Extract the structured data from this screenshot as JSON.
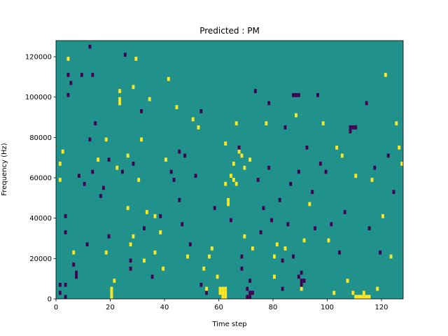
{
  "chart_data": {
    "type": "heatmap",
    "title": "Predicted : PM",
    "xlabel": "Time step",
    "ylabel": "Frequency (Hz)",
    "xlim": [
      0,
      128
    ],
    "ylim": [
      0,
      128000
    ],
    "xticks": [
      0,
      20,
      40,
      60,
      80,
      100,
      120
    ],
    "yticks": [
      0,
      20000,
      40000,
      60000,
      80000,
      100000,
      120000
    ],
    "grid": false,
    "colormap": "viridis",
    "levels": [
      {
        "value": 0,
        "color": "#440154"
      },
      {
        "value": 1,
        "color": "#21918c"
      },
      {
        "value": 2,
        "color": "#fde725"
      }
    ],
    "background_value": 1,
    "cell_width_steps": 1,
    "cell_height_hz": 2000,
    "cells": [
      [
        1,
        2000,
        0
      ],
      [
        1,
        6000,
        0
      ],
      [
        3,
        6000,
        0
      ],
      [
        1,
        58000,
        2
      ],
      [
        1,
        66000,
        2
      ],
      [
        2,
        72000,
        2
      ],
      [
        3,
        32000,
        0
      ],
      [
        3,
        40000,
        0
      ],
      [
        4,
        100000,
        0
      ],
      [
        5,
        106000,
        0
      ],
      [
        4,
        118000,
        2
      ],
      [
        6,
        16000,
        0
      ],
      [
        7,
        10000,
        0
      ],
      [
        7,
        12000,
        0
      ],
      [
        6,
        22000,
        2
      ],
      [
        8,
        60000,
        0
      ],
      [
        9,
        110000,
        0
      ],
      [
        10,
        56000,
        0
      ],
      [
        11,
        26000,
        0
      ],
      [
        12,
        78000,
        0
      ],
      [
        12,
        124000,
        0
      ],
      [
        13,
        62000,
        0
      ],
      [
        13,
        110000,
        0
      ],
      [
        14,
        86000,
        0
      ],
      [
        15,
        68000,
        2
      ],
      [
        16,
        50000,
        0
      ],
      [
        17,
        54000,
        0
      ],
      [
        18,
        78000,
        2
      ],
      [
        19,
        30000,
        0
      ],
      [
        19,
        68000,
        0
      ],
      [
        20,
        0,
        2
      ],
      [
        20,
        2000,
        2
      ],
      [
        20,
        4000,
        2
      ],
      [
        21,
        8000,
        2
      ],
      [
        22,
        64000,
        2
      ],
      [
        23,
        102000,
        2
      ],
      [
        24,
        62000,
        0
      ],
      [
        25,
        120000,
        0
      ],
      [
        26,
        44000,
        2
      ],
      [
        26,
        70000,
        2
      ],
      [
        27,
        18000,
        0
      ],
      [
        27,
        26000,
        2
      ],
      [
        28,
        66000,
        0
      ],
      [
        28,
        104000,
        2
      ],
      [
        29,
        118000,
        2
      ],
      [
        30,
        58000,
        2
      ],
      [
        31,
        78000,
        2
      ],
      [
        31,
        92000,
        0
      ],
      [
        32,
        34000,
        0
      ],
      [
        32,
        18000,
        2
      ],
      [
        33,
        42000,
        2
      ],
      [
        34,
        98000,
        2
      ],
      [
        35,
        10000,
        0
      ],
      [
        36,
        22000,
        2
      ],
      [
        36,
        40000,
        2
      ],
      [
        38,
        40000,
        0
      ],
      [
        38,
        32000,
        2
      ],
      [
        39,
        14000,
        2
      ],
      [
        40,
        68000,
        2
      ],
      [
        41,
        108000,
        2
      ],
      [
        42,
        62000,
        0
      ],
      [
        43,
        58000,
        0
      ],
      [
        44,
        94000,
        2
      ],
      [
        45,
        48000,
        0
      ],
      [
        45,
        72000,
        0
      ],
      [
        46,
        36000,
        0
      ],
      [
        47,
        70000,
        0
      ],
      [
        48,
        20000,
        2
      ],
      [
        49,
        26000,
        0
      ],
      [
        50,
        88000,
        2
      ],
      [
        51,
        60000,
        0
      ],
      [
        52,
        84000,
        2
      ],
      [
        53,
        92000,
        0
      ],
      [
        54,
        14000,
        2
      ],
      [
        55,
        2000,
        0
      ],
      [
        55,
        4000,
        2
      ],
      [
        56,
        20000,
        2
      ],
      [
        57,
        24000,
        2
      ],
      [
        58,
        44000,
        0
      ],
      [
        59,
        10000,
        2
      ],
      [
        60,
        2000,
        2
      ],
      [
        60,
        4000,
        2
      ],
      [
        61,
        4000,
        2
      ],
      [
        62,
        76000,
        2
      ],
      [
        62,
        56000,
        2
      ],
      [
        63,
        46000,
        2
      ],
      [
        64,
        60000,
        2
      ],
      [
        65,
        66000,
        2
      ],
      [
        66,
        86000,
        2
      ],
      [
        67,
        72000,
        2
      ],
      [
        68,
        20000,
        0
      ],
      [
        68,
        14000,
        0
      ],
      [
        69,
        30000,
        2
      ],
      [
        70,
        4000,
        0
      ],
      [
        71,
        8000,
        0
      ],
      [
        71,
        68000,
        2
      ],
      [
        72,
        24000,
        2
      ],
      [
        73,
        102000,
        0
      ],
      [
        74,
        58000,
        0
      ],
      [
        75,
        32000,
        0
      ],
      [
        76,
        44000,
        0
      ],
      [
        77,
        86000,
        2
      ],
      [
        78,
        96000,
        0
      ],
      [
        78,
        64000,
        0
      ],
      [
        79,
        38000,
        0
      ],
      [
        80,
        10000,
        2
      ],
      [
        80,
        20000,
        2
      ],
      [
        81,
        26000,
        2
      ],
      [
        82,
        48000,
        0
      ],
      [
        83,
        4000,
        0
      ],
      [
        84,
        84000,
        0
      ],
      [
        85,
        36000,
        0
      ],
      [
        86,
        56000,
        0
      ],
      [
        87,
        20000,
        0
      ],
      [
        88,
        90000,
        2
      ],
      [
        89,
        62000,
        0
      ],
      [
        90,
        4000,
        2
      ],
      [
        90,
        12000,
        0
      ],
      [
        91,
        28000,
        2
      ],
      [
        92,
        74000,
        0
      ],
      [
        93,
        46000,
        2
      ],
      [
        94,
        52000,
        0
      ],
      [
        95,
        34000,
        0
      ],
      [
        96,
        100000,
        0
      ],
      [
        97,
        66000,
        0
      ],
      [
        98,
        86000,
        2
      ],
      [
        99,
        62000,
        0
      ],
      [
        100,
        28000,
        2
      ],
      [
        101,
        36000,
        0
      ],
      [
        102,
        2000,
        2
      ],
      [
        103,
        74000,
        2
      ],
      [
        104,
        22000,
        0
      ],
      [
        105,
        70000,
        2
      ],
      [
        106,
        42000,
        0
      ],
      [
        107,
        8000,
        2
      ],
      [
        108,
        84000,
        0
      ],
      [
        109,
        2000,
        2
      ],
      [
        110,
        60000,
        2
      ],
      [
        111,
        0,
        2
      ],
      [
        112,
        0,
        2
      ],
      [
        113,
        0,
        2
      ],
      [
        114,
        96000,
        0
      ],
      [
        115,
        34000,
        0
      ],
      [
        116,
        58000,
        2
      ],
      [
        117,
        64000,
        0
      ],
      [
        118,
        4000,
        2
      ],
      [
        119,
        22000,
        0
      ],
      [
        120,
        40000,
        2
      ],
      [
        121,
        110000,
        2
      ],
      [
        122,
        70000,
        0
      ],
      [
        123,
        20000,
        2
      ],
      [
        124,
        52000,
        0
      ],
      [
        125,
        86000,
        2
      ],
      [
        126,
        74000,
        2
      ],
      [
        127,
        66000,
        2
      ],
      [
        3,
        0,
        0
      ],
      [
        4,
        110000,
        0
      ],
      [
        23,
        96000,
        2
      ],
      [
        23,
        98000,
        2
      ],
      [
        53,
        6000,
        0
      ],
      [
        61,
        2000,
        2
      ],
      [
        62,
        2000,
        2
      ],
      [
        62,
        4000,
        2
      ],
      [
        71,
        0,
        0
      ],
      [
        71,
        2000,
        0
      ],
      [
        89,
        10000,
        0
      ],
      [
        90,
        8000,
        0
      ],
      [
        90,
        6000,
        0
      ],
      [
        91,
        8000,
        0
      ],
      [
        87,
        100000,
        0
      ],
      [
        88,
        100000,
        0
      ],
      [
        89,
        100000,
        0
      ],
      [
        110,
        84000,
        0
      ],
      [
        109,
        84000,
        0
      ],
      [
        108,
        82000,
        0
      ],
      [
        113,
        2000,
        2
      ],
      [
        114,
        0,
        2
      ],
      [
        110,
        0,
        2
      ],
      [
        115,
        0,
        2
      ],
      [
        27,
        14000,
        0
      ],
      [
        28,
        30000,
        2
      ],
      [
        61,
        0,
        2
      ],
      [
        62,
        0,
        2
      ],
      [
        70,
        0,
        0
      ],
      [
        72,
        2000,
        0
      ],
      [
        18,
        22000,
        2
      ],
      [
        83,
        18000,
        0
      ],
      [
        84,
        24000,
        2
      ],
      [
        63,
        48000,
        2
      ],
      [
        64,
        38000,
        0
      ],
      [
        65,
        58000,
        2
      ],
      [
        66,
        56000,
        2
      ],
      [
        67,
        74000,
        0
      ],
      [
        68,
        70000,
        2
      ],
      [
        69,
        64000,
        2
      ]
    ]
  }
}
